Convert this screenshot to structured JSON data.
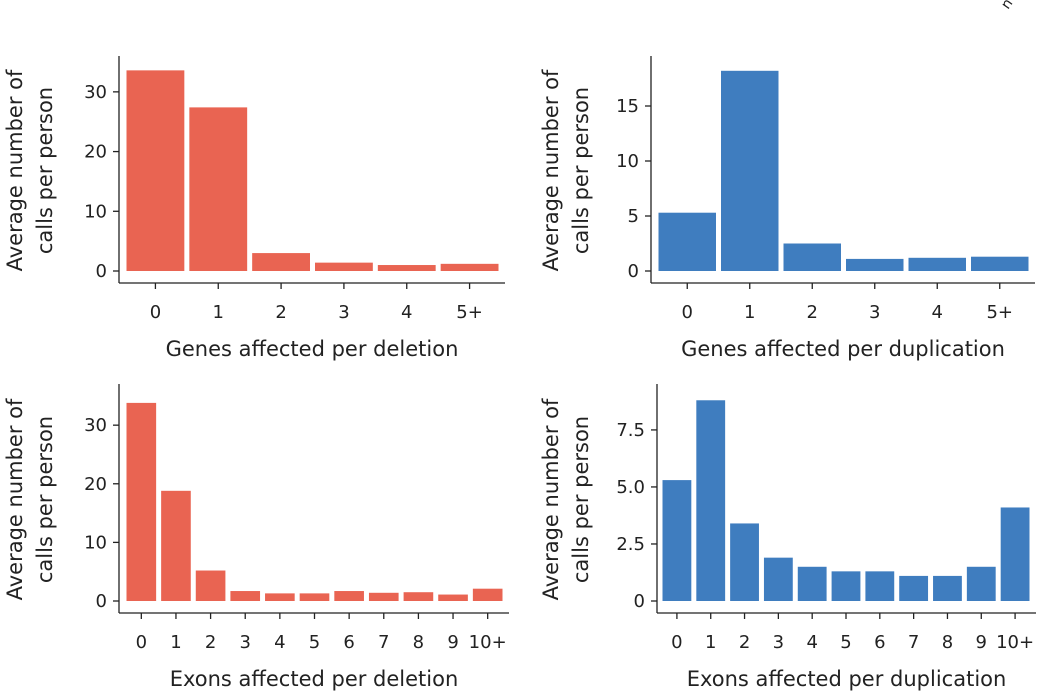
{
  "corner_label": "n",
  "colors": {
    "deletion": "#E96452",
    "duplication": "#3F7DBF",
    "axis": "#222222"
  },
  "chart_data": [
    {
      "type": "bar",
      "id": "genes-deletion",
      "categories": [
        "0",
        "1",
        "2",
        "3",
        "4",
        "5+"
      ],
      "values": [
        33.6,
        27.4,
        3.0,
        1.4,
        1.0,
        1.2
      ],
      "xlabel": "Genes affected per deletion",
      "ylabel_lines": [
        "Average number of",
        "calls per person"
      ],
      "ylim": [
        0,
        35
      ],
      "yticks": [
        0,
        10,
        20,
        30
      ],
      "ytick_labels": [
        "0",
        "10",
        "20",
        "30"
      ],
      "color": "#E96452"
    },
    {
      "type": "bar",
      "id": "genes-duplication",
      "categories": [
        "0",
        "1",
        "2",
        "3",
        "4",
        "5+"
      ],
      "values": [
        5.3,
        18.2,
        2.5,
        1.1,
        1.2,
        1.3
      ],
      "xlabel": "Genes affected per duplication",
      "ylabel_lines": [
        "Average number of",
        "calls per person"
      ],
      "ylim": [
        0,
        19
      ],
      "yticks": [
        0,
        5,
        10,
        15
      ],
      "ytick_labels": [
        "0",
        "5",
        "10",
        "15"
      ],
      "color": "#3F7DBF"
    },
    {
      "type": "bar",
      "id": "exons-deletion",
      "categories": [
        "0",
        "1",
        "2",
        "3",
        "4",
        "5",
        "6",
        "7",
        "8",
        "9",
        "10+"
      ],
      "values": [
        33.8,
        18.8,
        5.2,
        1.7,
        1.3,
        1.3,
        1.7,
        1.4,
        1.5,
        1.1,
        2.1
      ],
      "xlabel": "Exons affected per deletion",
      "ylabel_lines": [
        "Average number of",
        "calls per person"
      ],
      "ylim": [
        0,
        36
      ],
      "yticks": [
        0,
        10,
        20,
        30
      ],
      "ytick_labels": [
        "0",
        "10",
        "20",
        "30"
      ],
      "color": "#E96452"
    },
    {
      "type": "bar",
      "id": "exons-duplication",
      "categories": [
        "0",
        "1",
        "2",
        "3",
        "4",
        "5",
        "6",
        "7",
        "8",
        "9",
        "10+"
      ],
      "values": [
        5.3,
        8.8,
        3.4,
        1.9,
        1.5,
        1.3,
        1.3,
        1.1,
        1.1,
        1.5,
        4.1
      ],
      "xlabel": "Exons affected per duplication",
      "ylabel_lines": [
        "Average number of",
        "calls per person"
      ],
      "ylim": [
        0,
        9.25
      ],
      "yticks": [
        0,
        2.5,
        5.0,
        7.5
      ],
      "ytick_labels": [
        "0",
        "2.5",
        "5.0",
        "7.5"
      ],
      "color": "#3F7DBF"
    }
  ]
}
